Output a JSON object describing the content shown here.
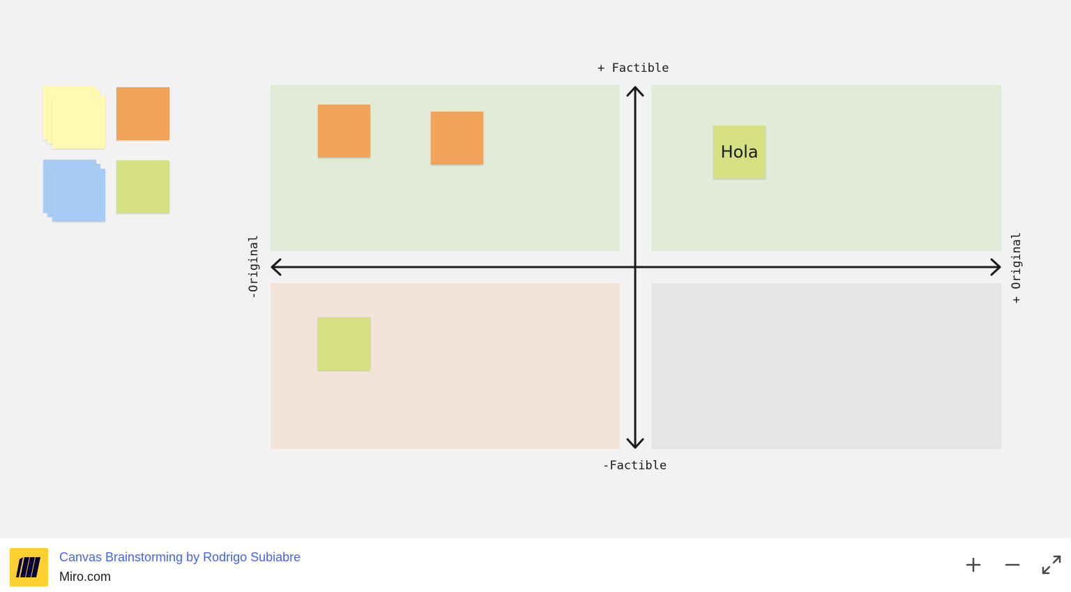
{
  "board": {
    "axis_labels": {
      "top": "+ Factible",
      "bottom": "-Factible",
      "left": "-Original",
      "right": "+ Original"
    },
    "notes": [
      {
        "color": "#f0a35a",
        "text": ""
      },
      {
        "color": "#f0a35a",
        "text": ""
      },
      {
        "color": "#d5e083",
        "text": "Hola"
      },
      {
        "color": "#d5e083",
        "text": ""
      }
    ],
    "quadrant_colors": {
      "top_left": "#e2ead8",
      "top_right": "#e2ead8",
      "bottom_left": "#f2e4d9",
      "bottom_right": "#e6e6e6"
    }
  },
  "palette": {
    "colors": [
      "#fff9b1",
      "#f0a35a",
      "#a6ccf5",
      "#d5e083"
    ]
  },
  "footer": {
    "title": "Canvas Brainstorming by Rodrigo Subiabre",
    "site": "Miro.com",
    "icons": [
      "miro-logo-icon",
      "plus-icon",
      "minus-icon",
      "expand-icon"
    ]
  }
}
